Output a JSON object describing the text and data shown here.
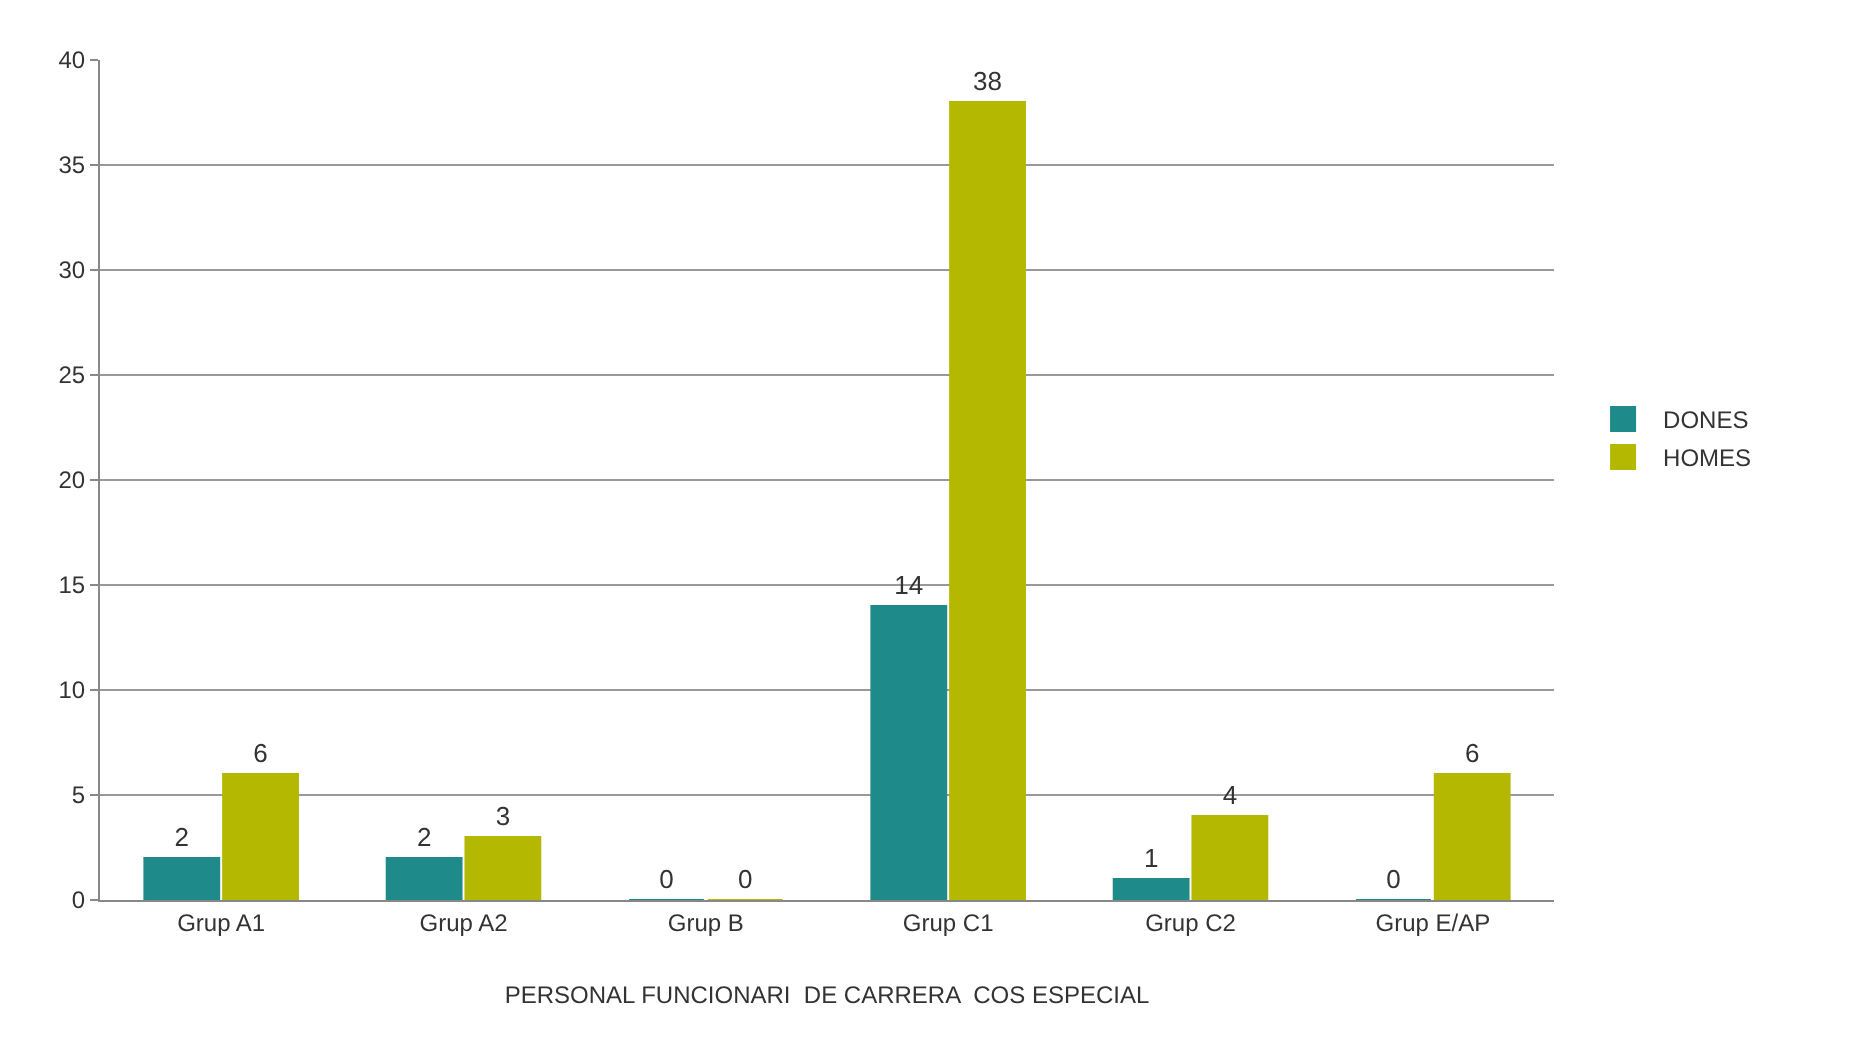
{
  "chart_data": {
    "type": "bar",
    "xlabel": "PERSONAL FUNCIONARI  DE CARRERA  COS ESPECIAL",
    "categories": [
      "Grup A1",
      "Grup A2",
      "Grup B",
      "Grup C1",
      "Grup C2",
      "Grup E/AP"
    ],
    "series": [
      {
        "name": "DONES",
        "color": "#1f8a8a",
        "values": [
          2,
          2,
          0,
          14,
          1,
          0
        ]
      },
      {
        "name": "HOMES",
        "color": "#b5b800",
        "values": [
          6,
          3,
          0,
          38,
          4,
          6
        ]
      }
    ],
    "ylim": [
      0,
      40
    ],
    "yticks": [
      0,
      5,
      10,
      15,
      20,
      25,
      30,
      35,
      40
    ],
    "grid": "y",
    "legend": "right",
    "data_labels": true
  }
}
